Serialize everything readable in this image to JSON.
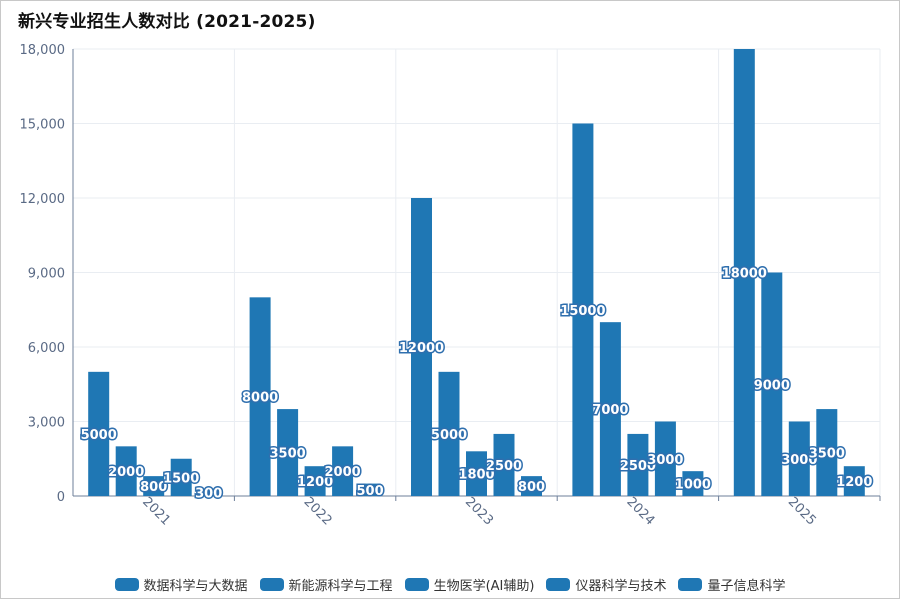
{
  "chart_data": {
    "type": "bar",
    "title": "新兴专业招生人数对比 (2021-2025)",
    "categories": [
      "2021",
      "2022",
      "2023",
      "2024",
      "2025"
    ],
    "series": [
      {
        "name": "数据科学与大数据",
        "values": [
          5000,
          8000,
          12000,
          15000,
          18000
        ]
      },
      {
        "name": "新能源科学与工程",
        "values": [
          2000,
          3500,
          5000,
          7000,
          9000
        ]
      },
      {
        "name": "生物医学(AI辅助)",
        "values": [
          800,
          1200,
          1800,
          2500,
          3000
        ]
      },
      {
        "name": "仪器科学与技术",
        "values": [
          1500,
          2000,
          2500,
          3000,
          3500
        ]
      },
      {
        "name": "量子信息科学",
        "values": [
          300,
          500,
          800,
          1000,
          1200
        ]
      }
    ],
    "ylim": [
      0,
      18000
    ],
    "yticks": [
      "0",
      "3,000",
      "6,000",
      "9,000",
      "12,000",
      "15,000",
      "18,000"
    ],
    "xlabel": "",
    "ylabel": "",
    "grid": true,
    "legend_position": "bottom",
    "bar_color": "#1f77b4"
  }
}
